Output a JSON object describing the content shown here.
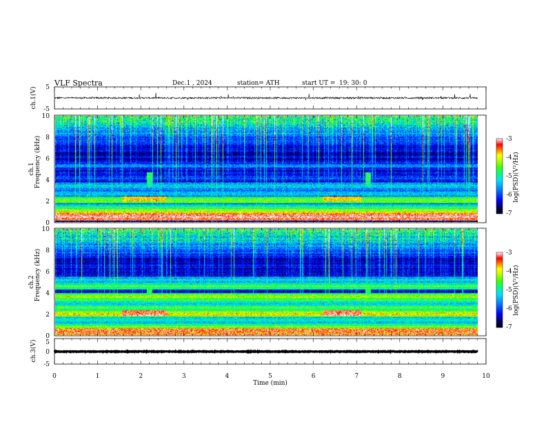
{
  "header": {
    "title": "VLF  Spectra",
    "date": "Dec.1  , 2024",
    "station": "station= ATH",
    "start_label": "start  UT  =",
    "start_time": "19: 30: 0"
  },
  "colors": {
    "spectrogram_palette": [
      "#000000",
      "#000033",
      "#000080",
      "#0000ff",
      "#0080ff",
      "#00d0ff",
      "#00ffa0",
      "#40ff00",
      "#c8ff00",
      "#ffff00",
      "#ff8000",
      "#ff0000",
      "#ffffff"
    ]
  },
  "chart_data": [
    {
      "id": "ch1-waveform",
      "type": "line",
      "ylabel": "ch.1(V)",
      "ylim": [
        -5,
        5
      ],
      "y_ticks": [
        "5",
        "-5"
      ],
      "xlim": [
        0,
        10
      ],
      "description_values": {
        "baseline_v": 0.0,
        "noise_amplitude_v": 0.8,
        "spike_max_v": 3.0
      }
    },
    {
      "id": "ch1-spectrogram",
      "type": "heatmap",
      "ylabel_line1": "ch.1",
      "ylabel_line2": "Frequency  (kHz)",
      "xlim": [
        0,
        9.85
      ],
      "ylim": [
        0,
        10
      ],
      "y_ticks": [
        "0",
        "2",
        "4",
        "6",
        "8",
        "10"
      ],
      "colorbar": {
        "label": "log(PSD)(V²/Hz)",
        "range": [
          -7,
          -3
        ],
        "ticks": [
          "-3",
          "-4",
          "-5",
          "-6",
          "-7"
        ]
      },
      "bands": [
        {
          "freq_khz": 0.45,
          "level": -2.9
        },
        {
          "freq_khz": 0.85,
          "level": -3.8
        },
        {
          "freq_khz": 1.3,
          "level": -4.7
        },
        {
          "freq_khz": 2.05,
          "level": -4.3
        },
        {
          "freq_khz": 2.7,
          "level": -5.2
        },
        {
          "freq_khz": 3.4,
          "level": -5.1
        },
        {
          "freq_khz": 4.1,
          "level": -5.9
        },
        {
          "freq_khz": 5.3,
          "level": -5.6
        }
      ],
      "events": [
        {
          "t_start_min": 1.55,
          "t_end_min": 2.6,
          "freq_khz": 2.15,
          "level": -3.8
        },
        {
          "t_start_min": 6.25,
          "t_end_min": 7.15,
          "freq_khz": 2.15,
          "level": -3.8
        },
        {
          "t_min": 2.2,
          "freq_khz": 4.0,
          "level": -4.8
        },
        {
          "t_min": 7.3,
          "freq_khz": 4.0,
          "level": -4.8
        }
      ]
    },
    {
      "id": "ch2-spectrogram",
      "type": "heatmap",
      "ylabel_line1": "ch.2",
      "ylabel_line2": "Frequency  (kHz)",
      "xlim": [
        0,
        9.85
      ],
      "ylim": [
        0,
        10
      ],
      "y_ticks": [
        "0",
        "2",
        "4",
        "6",
        "8",
        "10"
      ],
      "colorbar": {
        "label": "log(PSD)(V²/Hz)",
        "range": [
          -7,
          -3
        ],
        "ticks": [
          "-3",
          "-4",
          "-5",
          "-6",
          "-7"
        ]
      },
      "bands": [
        {
          "freq_khz": 0.3,
          "level": -3.2
        },
        {
          "freq_khz": 0.75,
          "level": -4.4
        },
        {
          "freq_khz": 1.4,
          "level": -4.9
        },
        {
          "freq_khz": 2.0,
          "level": -3.9
        },
        {
          "freq_khz": 2.6,
          "level": -4.6
        },
        {
          "freq_khz": 3.3,
          "level": -4.8
        },
        {
          "freq_khz": 3.6,
          "level": -4.2
        },
        {
          "freq_khz": 4.6,
          "level": -4.5
        },
        {
          "freq_khz": 5.2,
          "level": -5.1
        }
      ],
      "events": [
        {
          "t_start_min": 1.55,
          "t_end_min": 2.6,
          "freq_khz": 2.05,
          "level": -3.3
        },
        {
          "t_start_min": 6.25,
          "t_end_min": 7.15,
          "freq_khz": 2.05,
          "level": -3.3
        },
        {
          "t_min": 2.2,
          "freq_khz": 3.8,
          "level": -4.8
        },
        {
          "t_min": 7.3,
          "freq_khz": 3.8,
          "level": -4.8
        }
      ]
    },
    {
      "id": "ch3-waveform",
      "type": "line",
      "ylabel": "ch.3(V)",
      "ylim": [
        -5,
        5
      ],
      "y_ticks": [
        "5",
        "0",
        "-5"
      ],
      "xlim": [
        0,
        10
      ],
      "description_values": {
        "baseline_v": -0.1,
        "noise_amplitude_v": 0.25
      }
    }
  ],
  "x_axis": {
    "label": "Time  (min)",
    "ticks": [
      "0",
      "1",
      "2",
      "3",
      "4",
      "5",
      "6",
      "7",
      "8",
      "9",
      "10"
    ]
  }
}
